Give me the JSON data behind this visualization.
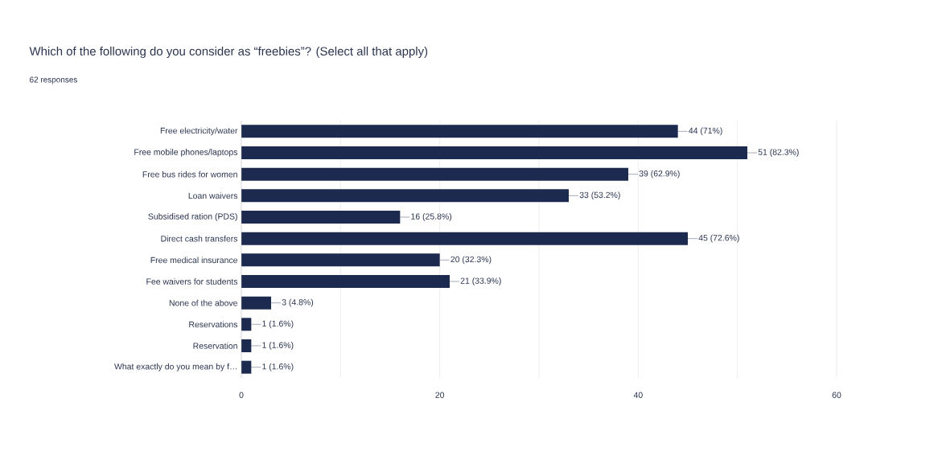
{
  "chart_data": {
    "type": "bar",
    "orientation": "horizontal",
    "title": "Which of the following do you consider as “freebies”? (Select all that apply)",
    "subtitle": "62 responses",
    "categories": [
      "Free electricity/water",
      "Free mobile phones/laptops",
      "Free bus rides for women",
      "Loan waivers",
      "Subsidised ration (PDS)",
      "Direct cash transfers",
      "Free medical insurance",
      "Fee waivers for students",
      "None of the above",
      "Reservations",
      "Reservation",
      "What exactly do you mean by f…"
    ],
    "values": [
      44,
      51,
      39,
      33,
      16,
      45,
      20,
      21,
      3,
      1,
      1,
      1
    ],
    "value_labels": [
      "44 (71%)",
      "51 (82.3%)",
      "39 (62.9%)",
      "33 (53.2%)",
      "16 (25.8%)",
      "45 (72.6%)",
      "20 (32.3%)",
      "21 (33.9%)",
      "3 (4.8%)",
      "1 (1.6%)",
      "1 (1.6%)",
      "1 (1.6%)"
    ],
    "color": "#1b2a4e",
    "xlim": [
      0,
      60
    ],
    "xticks": [
      0,
      {
        "value": 10,
        "label": null
      },
      20,
      {
        "value": 30,
        "label": null
      },
      40,
      {
        "value": 50,
        "label": null
      },
      60
    ],
    "grid": "x"
  }
}
